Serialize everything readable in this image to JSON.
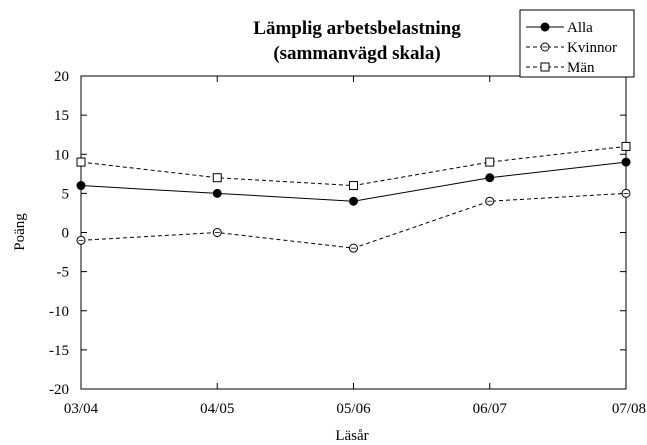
{
  "chart_data": {
    "type": "line",
    "title": "Lämplig arbetsbelastning",
    "subtitle": "(sammanvägd skala)",
    "xlabel": "Läsår",
    "ylabel": "Poäng",
    "categories": [
      "03/04",
      "04/05",
      "05/06",
      "06/07",
      "07/08"
    ],
    "ylim": [
      -20,
      20
    ],
    "yticks": [
      20,
      15,
      10,
      5,
      0,
      -5,
      -10,
      -15,
      -20
    ],
    "grid": false,
    "legend_position": "top-right",
    "series": [
      {
        "name": "Alla",
        "values": [
          6,
          5,
          4,
          7,
          9
        ],
        "line_style": "solid",
        "marker": "filled-circle",
        "color": "#000000"
      },
      {
        "name": "Kvinnor",
        "values": [
          -1,
          0,
          -2,
          4,
          5
        ],
        "line_style": "dashed",
        "marker": "open-circle",
        "color": "#000000"
      },
      {
        "name": "Män",
        "values": [
          9,
          7,
          6,
          9,
          11
        ],
        "line_style": "dashed",
        "marker": "open-square",
        "color": "#000000"
      }
    ]
  }
}
